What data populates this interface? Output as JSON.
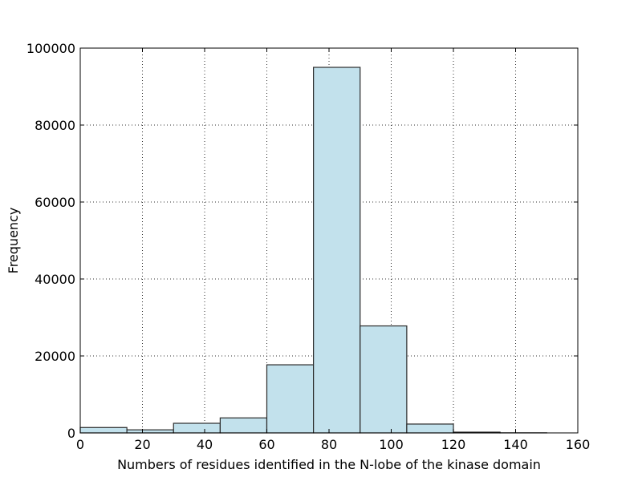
{
  "chart_data": {
    "type": "bar",
    "subtype": "histogram",
    "bins": [
      {
        "x0": 0,
        "x1": 15,
        "value": 1400
      },
      {
        "x0": 15,
        "x1": 30,
        "value": 800
      },
      {
        "x0": 30,
        "x1": 45,
        "value": 2500
      },
      {
        "x0": 45,
        "x1": 60,
        "value": 3900
      },
      {
        "x0": 60,
        "x1": 75,
        "value": 17700
      },
      {
        "x0": 75,
        "x1": 90,
        "value": 95000
      },
      {
        "x0": 90,
        "x1": 105,
        "value": 27800
      },
      {
        "x0": 105,
        "x1": 120,
        "value": 2300
      },
      {
        "x0": 120,
        "x1": 135,
        "value": 200
      },
      {
        "x0": 135,
        "x1": 150,
        "value": 30
      }
    ],
    "xlabel": "Numbers of residues identified in the N-lobe of the kinase domain",
    "ylabel": "Frequency",
    "xlim": [
      0,
      160
    ],
    "ylim": [
      0,
      100000
    ],
    "xticks": [
      "0",
      "20",
      "40",
      "60",
      "80",
      "100",
      "120",
      "140",
      "160"
    ],
    "yticks": [
      "0",
      "20000",
      "40000",
      "60000",
      "80000",
      "100000"
    ],
    "grid": true,
    "colors": {
      "bar_fill": "#c2e1ec",
      "bar_edge": "#2b2b2b"
    }
  }
}
